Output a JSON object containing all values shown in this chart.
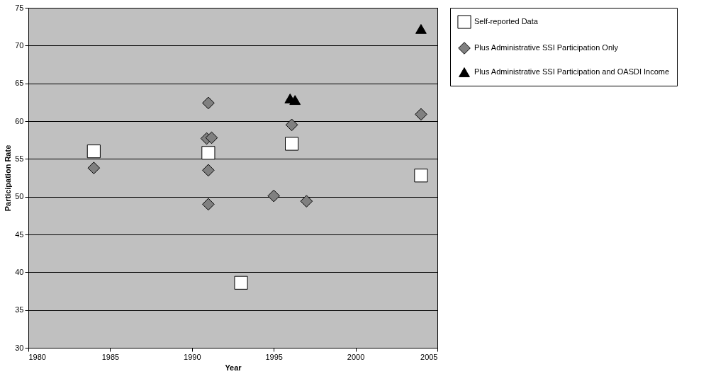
{
  "chart_data": {
    "type": "scatter",
    "xlabel": "Year",
    "ylabel": "Participation Rate",
    "xlim": [
      1980,
      2005
    ],
    "ylim": [
      30,
      75
    ],
    "xticks": [
      1980,
      1985,
      1990,
      1995,
      2000,
      2005
    ],
    "yticks": [
      30,
      35,
      40,
      45,
      50,
      55,
      60,
      65,
      70,
      75
    ],
    "grid": "y",
    "legend": "right",
    "series": [
      {
        "name": "Self-reported Data",
        "color": "#ffffff",
        "marker": "square",
        "x": [
          1984,
          1991,
          1993,
          1996.1,
          2004
        ],
        "values": [
          56.0,
          55.8,
          38.6,
          57.0,
          52.8
        ]
      },
      {
        "name": "Plus Administrative SSI Participation Only",
        "color": "#808080",
        "marker": "diamond",
        "x": [
          1984,
          1991,
          1990.9,
          1991.2,
          1991,
          1991,
          1995,
          1996.1,
          1997,
          2004
        ],
        "values": [
          53.8,
          62.4,
          57.7,
          57.8,
          53.5,
          49.0,
          50.1,
          59.5,
          49.4,
          60.9
        ]
      },
      {
        "name": "Plus Administrative SSI Participation and OASDI Income",
        "color": "#000000",
        "marker": "triangle",
        "x": [
          1996,
          1996.3,
          2004
        ],
        "values": [
          63.0,
          62.8,
          72.2
        ]
      }
    ]
  }
}
